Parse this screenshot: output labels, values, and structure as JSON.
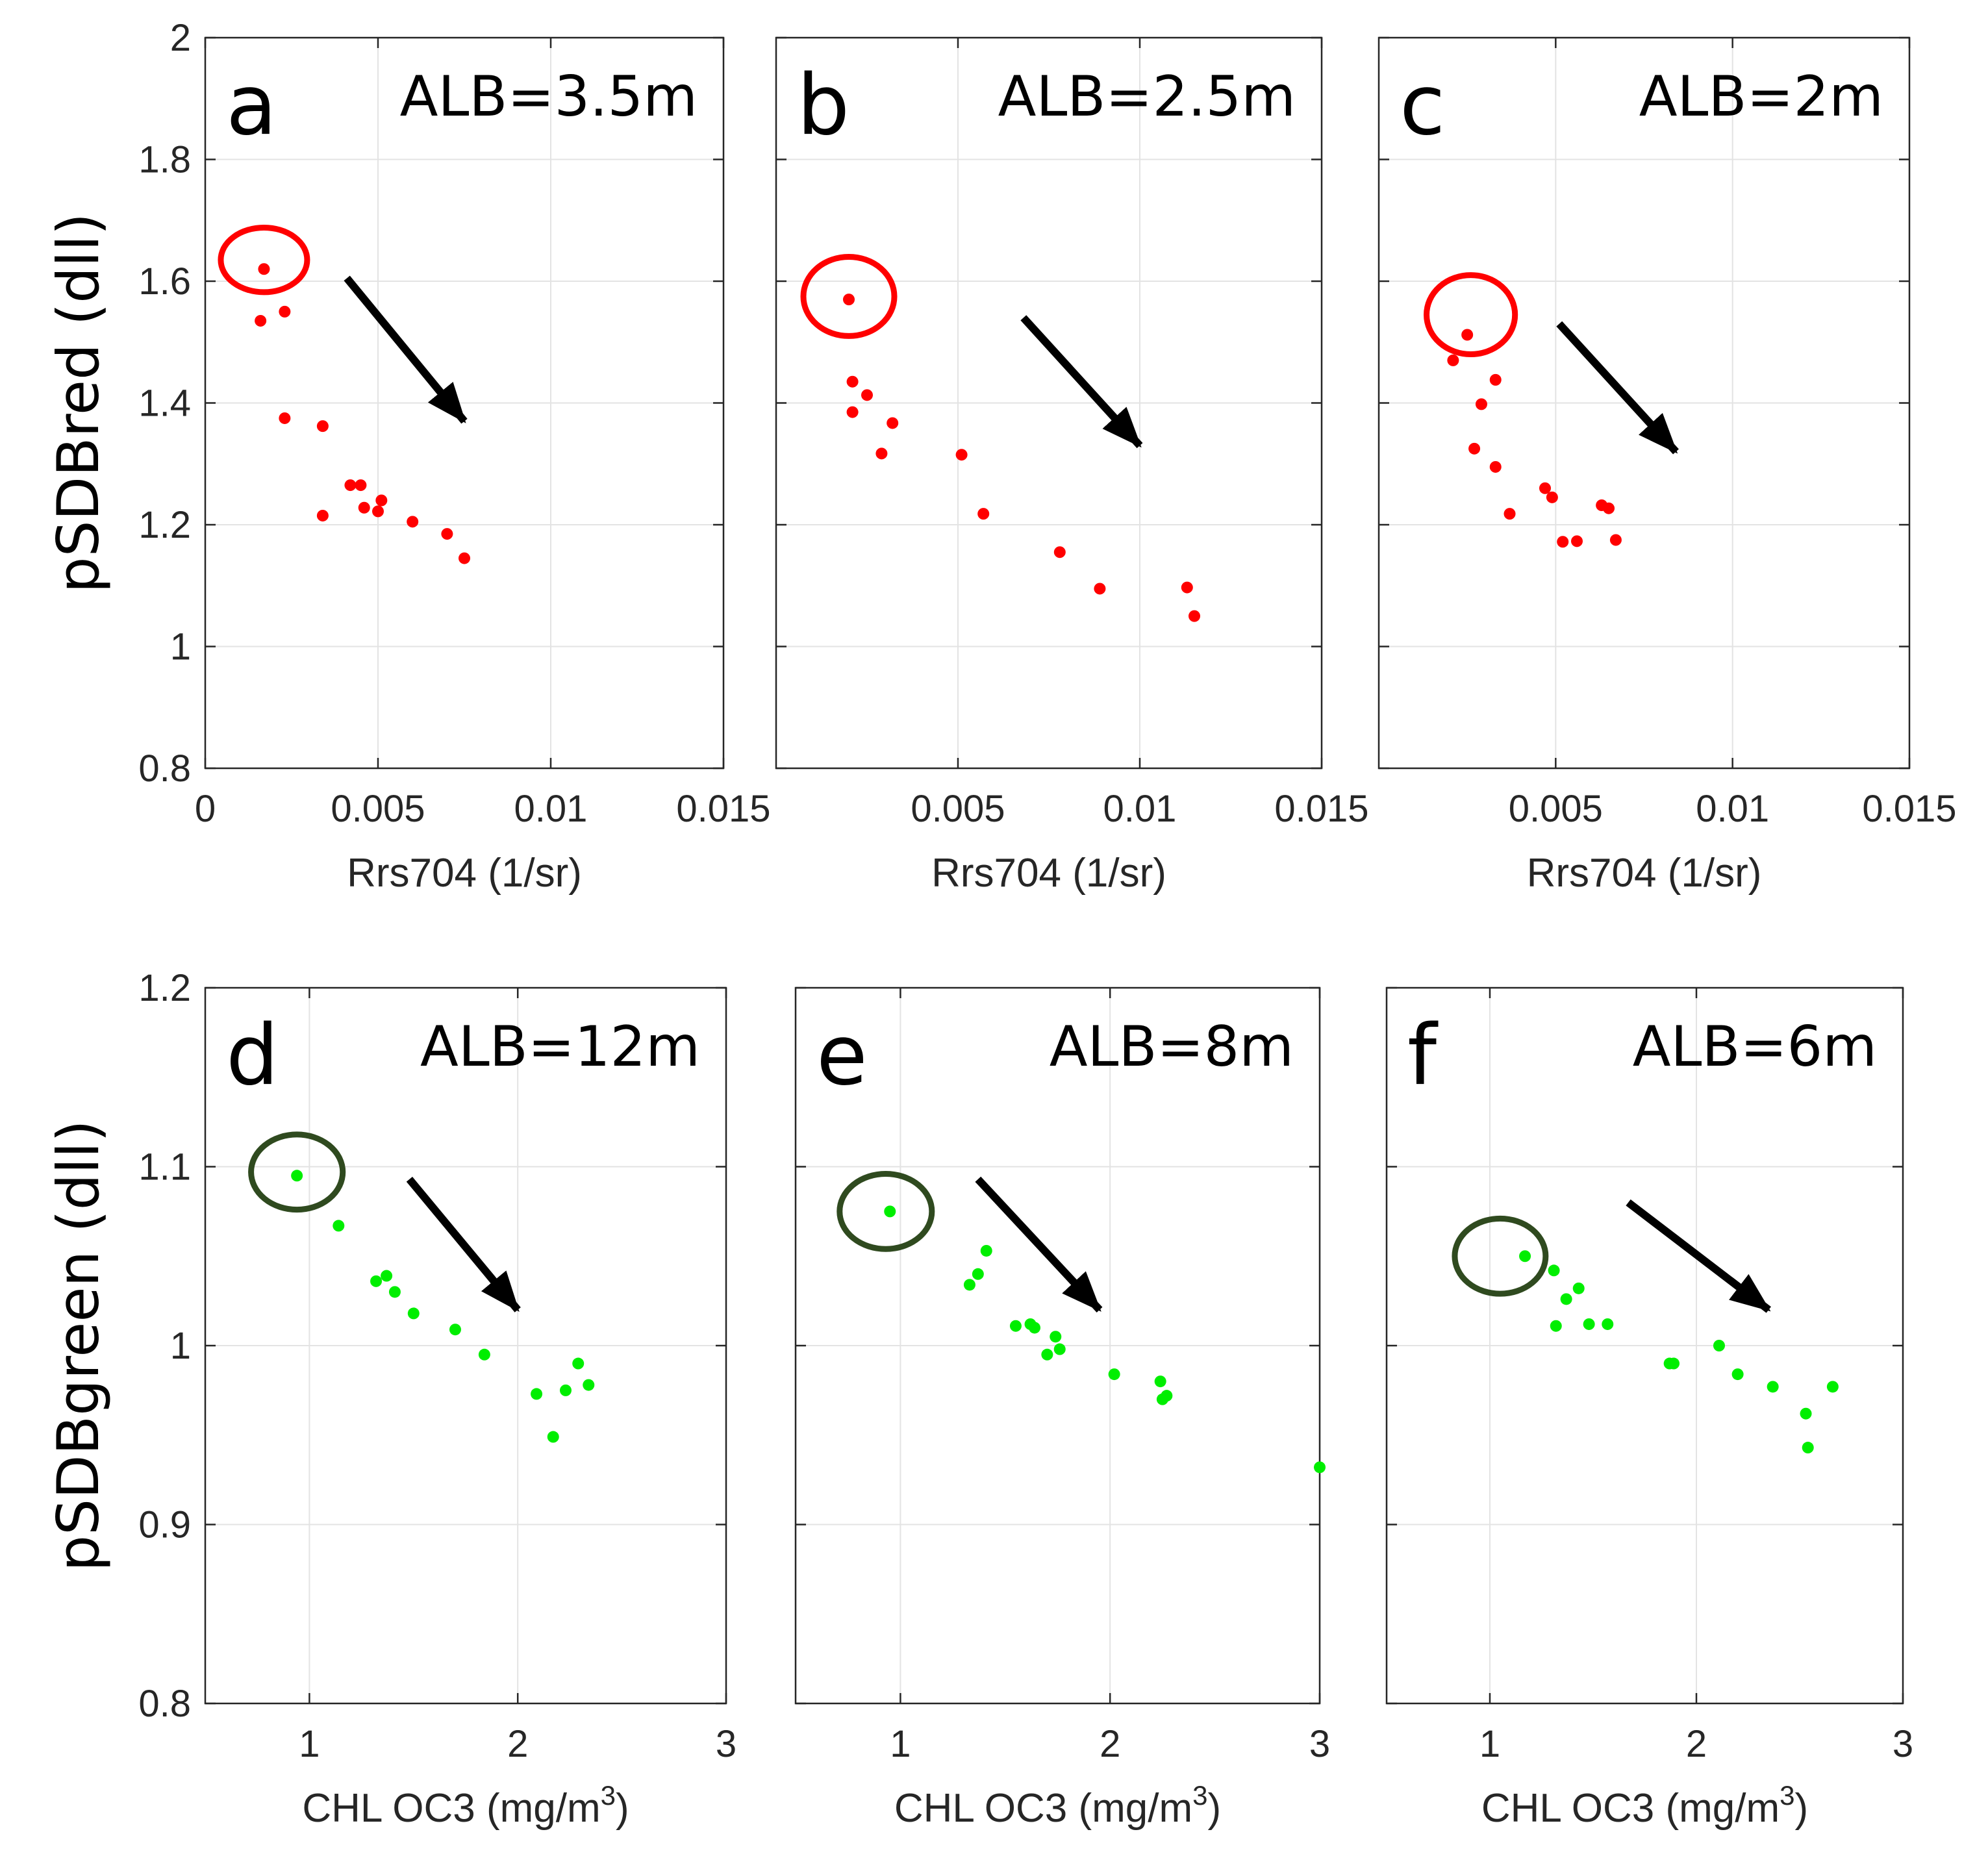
{
  "figure": {
    "colors": {
      "red_point": "#ff0000",
      "red_circle": "#ff0000",
      "green_point": "#00ee00",
      "green_circle": "#2f4a1f",
      "arrow": "#000000"
    }
  },
  "chart_data": [
    {
      "id": "a",
      "type": "scatter",
      "label": "a",
      "annotation": "ALB=3.5m",
      "xlabel": "Rrs704 (1/sr)",
      "ylabel": "pSDBred (dll)",
      "xlim": [
        0,
        0.015
      ],
      "ylim": [
        0.8,
        2.0
      ],
      "xticks": [
        0,
        0.005,
        0.01,
        0.015
      ],
      "xtick_labels": [
        "0",
        "0.005",
        "0.01",
        "0.015"
      ],
      "yticks": [
        0.8,
        1.0,
        1.2,
        1.4,
        1.6,
        1.8,
        2.0
      ],
      "ytick_labels": [
        "0.8",
        "1",
        "1.2",
        "1.4",
        "1.6",
        "1.8",
        "2"
      ],
      "color": "#ff0000",
      "circled": [
        0.0017,
        1.635
      ],
      "circled_radius": [
        0.00125,
        0.053
      ],
      "arrow": [
        [
          0.0041,
          1.605
        ],
        [
          0.0075,
          1.37
        ]
      ],
      "points": [
        [
          0.0017,
          1.62
        ],
        [
          0.0016,
          1.535
        ],
        [
          0.0023,
          1.55
        ],
        [
          0.0023,
          1.375
        ],
        [
          0.0034,
          1.362
        ],
        [
          0.0034,
          1.215
        ],
        [
          0.0042,
          1.265
        ],
        [
          0.0045,
          1.265
        ],
        [
          0.0046,
          1.228
        ],
        [
          0.005,
          1.222
        ],
        [
          0.0051,
          1.24
        ],
        [
          0.006,
          1.205
        ],
        [
          0.007,
          1.185
        ],
        [
          0.0075,
          1.145
        ]
      ]
    },
    {
      "id": "b",
      "type": "scatter",
      "label": "b",
      "annotation": "ALB=2.5m",
      "xlabel": "Rrs704 (1/sr)",
      "xlim": [
        0,
        0.015
      ],
      "ylim": [
        0.8,
        2.0
      ],
      "xticks": [
        0.005,
        0.01,
        0.015
      ],
      "xtick_labels": [
        "0.005",
        "0.01",
        "0.015"
      ],
      "yticks": [
        0.8,
        1.0,
        1.2,
        1.4,
        1.6,
        1.8,
        2.0
      ],
      "color": "#ff0000",
      "circled": [
        0.002,
        1.575
      ],
      "circled_radius": [
        0.00125,
        0.065
      ],
      "arrow": [
        [
          0.0068,
          1.54
        ],
        [
          0.01,
          1.33
        ]
      ],
      "points": [
        [
          0.002,
          1.57
        ],
        [
          0.0021,
          1.435
        ],
        [
          0.0021,
          1.385
        ],
        [
          0.0025,
          1.413
        ],
        [
          0.0029,
          1.317
        ],
        [
          0.0032,
          1.367
        ],
        [
          0.0051,
          1.315
        ],
        [
          0.0057,
          1.218
        ],
        [
          0.0078,
          1.155
        ],
        [
          0.0089,
          1.095
        ],
        [
          0.0113,
          1.097
        ],
        [
          0.0115,
          1.05
        ]
      ]
    },
    {
      "id": "c",
      "type": "scatter",
      "label": "c",
      "annotation": "ALB=2m",
      "xlabel": "Rrs704 (1/sr)",
      "xlim": [
        0,
        0.015
      ],
      "ylim": [
        0.8,
        2.0
      ],
      "xticks": [
        0.005,
        0.01,
        0.015
      ],
      "xtick_labels": [
        "0.005",
        "0.01",
        "0.015"
      ],
      "yticks": [
        0.8,
        1.0,
        1.2,
        1.4,
        1.6,
        1.8,
        2.0
      ],
      "color": "#ff0000",
      "circled": [
        0.0026,
        1.545
      ],
      "circled_radius": [
        0.00125,
        0.065
      ],
      "arrow": [
        [
          0.0051,
          1.53
        ],
        [
          0.0084,
          1.32
        ]
      ],
      "points": [
        [
          0.0021,
          1.47
        ],
        [
          0.0025,
          1.512
        ],
        [
          0.0027,
          1.325
        ],
        [
          0.0029,
          1.398
        ],
        [
          0.0033,
          1.438
        ],
        [
          0.0033,
          1.295
        ],
        [
          0.0037,
          1.218
        ],
        [
          0.0047,
          1.26
        ],
        [
          0.0049,
          1.245
        ],
        [
          0.0052,
          1.172
        ],
        [
          0.0056,
          1.173
        ],
        [
          0.0063,
          1.232
        ],
        [
          0.0065,
          1.227
        ],
        [
          0.0067,
          1.175
        ]
      ]
    },
    {
      "id": "d",
      "type": "scatter",
      "label": "d",
      "annotation": "ALB=12m",
      "xlabel": "CHL OC3 (mg/m",
      "xlabel_sup": "3",
      "xlabel_end": ")",
      "ylabel": "pSDBgreen (dll)",
      "xlim": [
        0.5,
        3.0
      ],
      "ylim": [
        0.8,
        1.2
      ],
      "xticks": [
        1,
        2,
        3
      ],
      "xtick_labels": [
        "1",
        "2",
        "3"
      ],
      "yticks": [
        0.8,
        0.9,
        1.0,
        1.1,
        1.2
      ],
      "ytick_labels": [
        "0.8",
        "0.9",
        "1",
        "1.1",
        "1.2"
      ],
      "color": "#00ee00",
      "circled": [
        0.94,
        1.097
      ],
      "circled_radius": [
        0.22,
        0.021
      ],
      "arrow": [
        [
          1.48,
          1.093
        ],
        [
          2.0,
          1.02
        ]
      ],
      "points": [
        [
          0.94,
          1.095
        ],
        [
          1.14,
          1.067
        ],
        [
          1.32,
          1.036
        ],
        [
          1.37,
          1.039
        ],
        [
          1.41,
          1.03
        ],
        [
          1.5,
          1.018
        ],
        [
          1.7,
          1.009
        ],
        [
          1.84,
          0.995
        ],
        [
          2.09,
          0.973
        ],
        [
          2.17,
          0.949
        ],
        [
          2.23,
          0.975
        ],
        [
          2.29,
          0.99
        ],
        [
          2.34,
          0.978
        ]
      ]
    },
    {
      "id": "e",
      "type": "scatter",
      "label": "e",
      "annotation": "ALB=8m",
      "xlabel": "CHL OC3 (mg/m",
      "xlabel_sup": "3",
      "xlabel_end": ")",
      "xlim": [
        0.5,
        3.0
      ],
      "ylim": [
        0.8,
        1.2
      ],
      "xticks": [
        1,
        2,
        3
      ],
      "xtick_labels": [
        "1",
        "2",
        "3"
      ],
      "yticks": [
        0.8,
        0.9,
        1.0,
        1.1,
        1.2
      ],
      "color": "#00ee00",
      "circled": [
        0.93,
        1.075
      ],
      "circled_radius": [
        0.22,
        0.021
      ],
      "arrow": [
        [
          1.37,
          1.093
        ],
        [
          1.95,
          1.02
        ]
      ],
      "points": [
        [
          0.95,
          1.075
        ],
        [
          1.33,
          1.034
        ],
        [
          1.37,
          1.04
        ],
        [
          1.41,
          1.053
        ],
        [
          1.55,
          1.011
        ],
        [
          1.62,
          1.012
        ],
        [
          1.64,
          1.01
        ],
        [
          1.7,
          0.995
        ],
        [
          1.74,
          1.005
        ],
        [
          1.76,
          0.998
        ],
        [
          2.02,
          0.984
        ],
        [
          2.24,
          0.98
        ],
        [
          2.25,
          0.97
        ],
        [
          2.27,
          0.972
        ],
        [
          3.0,
          0.932
        ]
      ]
    },
    {
      "id": "f",
      "type": "scatter",
      "label": "f",
      "annotation": "ALB=6m",
      "xlabel": "CHL OC3 (mg/m",
      "xlabel_sup": "3",
      "xlabel_end": ")",
      "xlim": [
        0.5,
        3.0
      ],
      "ylim": [
        0.8,
        1.2
      ],
      "xticks": [
        1,
        2,
        3
      ],
      "xtick_labels": [
        "1",
        "2",
        "3"
      ],
      "yticks": [
        0.8,
        0.9,
        1.0,
        1.1,
        1.2
      ],
      "color": "#00ee00",
      "circled": [
        1.05,
        1.05
      ],
      "circled_radius": [
        0.22,
        0.021
      ],
      "arrow": [
        [
          1.67,
          1.08
        ],
        [
          2.35,
          1.02
        ]
      ],
      "points": [
        [
          1.17,
          1.05
        ],
        [
          1.31,
          1.042
        ],
        [
          1.32,
          1.011
        ],
        [
          1.37,
          1.026
        ],
        [
          1.43,
          1.032
        ],
        [
          1.48,
          1.012
        ],
        [
          1.57,
          1.012
        ],
        [
          1.87,
          0.99
        ],
        [
          1.89,
          0.99
        ],
        [
          2.11,
          1.0
        ],
        [
          2.2,
          0.984
        ],
        [
          2.37,
          0.977
        ],
        [
          2.53,
          0.962
        ],
        [
          2.54,
          0.943
        ],
        [
          2.66,
          0.977
        ]
      ]
    }
  ]
}
